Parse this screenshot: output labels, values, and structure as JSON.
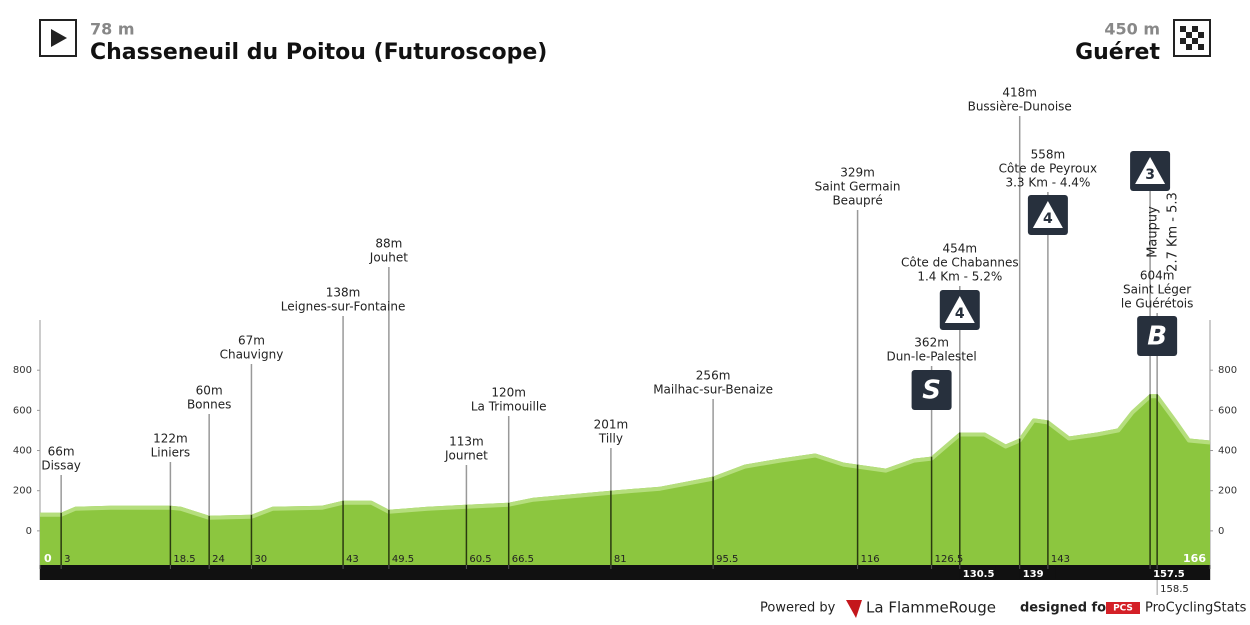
{
  "header": {
    "start": {
      "altitude": "78 m",
      "name": "Chasseneuil du Poitou (Futuroscope)"
    },
    "finish": {
      "altitude": "450 m",
      "name": "Guéret"
    }
  },
  "chart_data": {
    "type": "area",
    "color": "#8cc63f",
    "x": [
      0,
      3,
      5,
      10,
      18.5,
      20,
      24,
      30,
      33,
      40,
      43,
      47,
      49.5,
      55,
      60.5,
      66.5,
      70,
      81,
      88,
      95.5,
      100,
      105,
      110,
      114,
      116,
      120,
      124,
      126.5,
      130.5,
      134,
      137,
      139,
      141,
      143,
      146,
      150,
      153,
      155,
      157.5,
      158.5,
      161,
      163,
      166
    ],
    "values": [
      90,
      90,
      120,
      125,
      125,
      120,
      75,
      80,
      120,
      125,
      150,
      150,
      105,
      120,
      130,
      140,
      165,
      200,
      220,
      270,
      330,
      360,
      385,
      340,
      330,
      310,
      360,
      370,
      490,
      490,
      430,
      460,
      560,
      550,
      470,
      490,
      510,
      600,
      680,
      680,
      560,
      460,
      450
    ],
    "xlim": [
      0,
      166
    ],
    "ylim": [
      -170,
      1050
    ],
    "yticks": [
      0,
      200,
      400,
      600,
      800
    ],
    "xticks": [
      0,
      3,
      18.5,
      24,
      30,
      43,
      49.5,
      60.5,
      66.5,
      81,
      95.5,
      116,
      126.5,
      130.5,
      139,
      143,
      157.5,
      158.5,
      166
    ],
    "waypoints": [
      {
        "km": 3,
        "lines": [
          "66m",
          "Dissay"
        ]
      },
      {
        "km": 18.5,
        "lines": [
          "122m",
          "Liniers"
        ]
      },
      {
        "km": 24,
        "lines": [
          "60m",
          "Bonnes"
        ]
      },
      {
        "km": 30,
        "lines": [
          "67m",
          "Chauvigny"
        ]
      },
      {
        "km": 43,
        "lines": [
          "138m",
          "Leignes-sur-Fontaine"
        ]
      },
      {
        "km": 49.5,
        "lines": [
          "88m",
          "Jouhet"
        ]
      },
      {
        "km": 60.5,
        "lines": [
          "113m",
          "Journet"
        ]
      },
      {
        "km": 66.5,
        "lines": [
          "120m",
          "La Trimouille"
        ]
      },
      {
        "km": 81,
        "lines": [
          "201m",
          "Tilly"
        ]
      },
      {
        "km": 95.5,
        "lines": [
          "256m",
          "Mailhac-sur-Benaize"
        ]
      },
      {
        "km": 116,
        "lines": [
          "329m",
          "Saint Germain",
          "Beaupré"
        ]
      },
      {
        "km": 126.5,
        "lines": [
          "362m",
          "Dun-le-Palestel"
        ],
        "icon": "S"
      },
      {
        "km": 130.5,
        "lines": [
          "454m",
          "Côte de Chabannes",
          "1.4 Km - 5.2%"
        ],
        "icon": "4"
      },
      {
        "km": 139,
        "lines": [
          "418m",
          "Bussière-Dunoise"
        ]
      },
      {
        "km": 143,
        "lines": [
          "558m",
          "Côte de Peyroux",
          "3.3 Km - 4.4%"
        ],
        "icon": "4"
      },
      {
        "km": 157.5,
        "lines": [
          "Maupuy",
          "2.7 Km - 5.3"
        ],
        "icon": "3"
      },
      {
        "km": 158.5,
        "lines": [
          "604m",
          "Saint Léger",
          "le Guérétois"
        ],
        "icon": "B"
      }
    ]
  },
  "footer": {
    "powered": "Powered by",
    "brand": "La FlammeRouge",
    "designed": "designed for",
    "pcs_badge": "PCS",
    "pcs": "ProCyclingStats"
  }
}
